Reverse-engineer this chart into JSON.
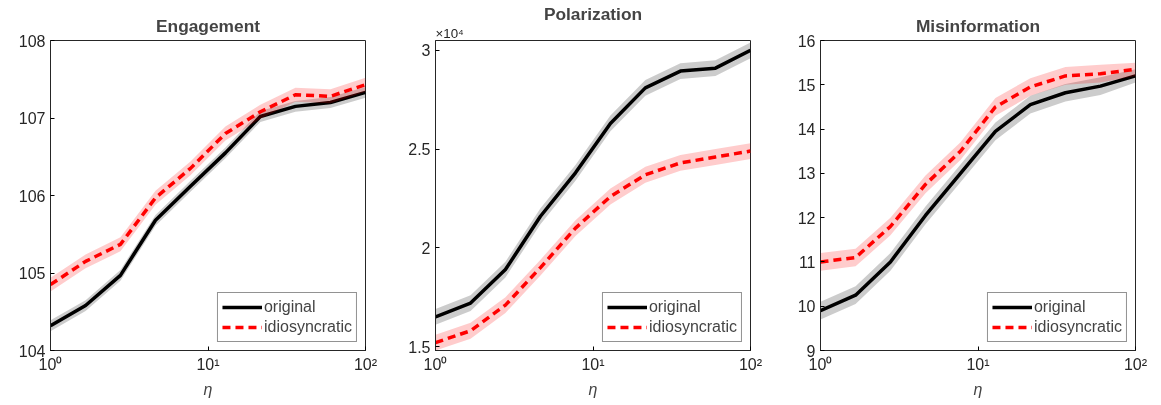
{
  "chart_data": [
    {
      "type": "line",
      "title": "Engagement",
      "xlabel": "η",
      "x": [
        1,
        1.67,
        2.78,
        4.64,
        7.74,
        12.9,
        21.5,
        35.9,
        59.9,
        100
      ],
      "xlim": [
        1,
        100
      ],
      "xticks": [
        {
          "value": 1,
          "label": "10⁰"
        },
        {
          "value": 10,
          "label": "10¹"
        },
        {
          "value": 100,
          "label": "10²"
        }
      ],
      "log": "x",
      "ylim": [
        104,
        108
      ],
      "yticks": [
        104,
        105,
        106,
        107,
        108
      ],
      "grid": false,
      "legend": "bottom right",
      "series": [
        {
          "name": "original",
          "color": "#000000",
          "line_style": "solid",
          "values": [
            104.32,
            104.58,
            104.97,
            105.68,
            106.12,
            106.55,
            107.02,
            107.15,
            107.2,
            107.33
          ],
          "lower": [
            104.25,
            104.51,
            104.9,
            105.61,
            106.05,
            106.48,
            106.95,
            107.08,
            107.13,
            107.26
          ],
          "upper": [
            104.39,
            104.65,
            105.04,
            105.75,
            106.19,
            106.62,
            107.09,
            107.22,
            107.27,
            107.4
          ]
        },
        {
          "name": "idiosyncratic",
          "color": "#ff0000",
          "line_style": "dashed",
          "values": [
            104.85,
            105.15,
            105.37,
            105.97,
            106.35,
            106.8,
            107.08,
            107.3,
            107.28,
            107.43
          ],
          "lower": [
            104.76,
            105.06,
            105.28,
            105.88,
            106.26,
            106.71,
            106.99,
            107.21,
            107.19,
            107.34
          ],
          "upper": [
            104.94,
            105.24,
            105.46,
            106.06,
            106.44,
            106.89,
            107.17,
            107.39,
            107.37,
            107.52
          ]
        }
      ]
    },
    {
      "type": "line",
      "title": "Polarization",
      "xlabel": "η",
      "annotations": [
        "×10⁴"
      ],
      "x": [
        1,
        1.67,
        2.78,
        4.64,
        7.74,
        12.9,
        21.5,
        35.9,
        59.9,
        100
      ],
      "xlim": [
        1,
        100
      ],
      "xticks": [
        {
          "value": 1,
          "label": "10⁰"
        },
        {
          "value": 10,
          "label": "10¹"
        },
        {
          "value": 100,
          "label": "10²"
        }
      ],
      "log": "x",
      "ylim": [
        1.48,
        3.05
      ],
      "yticks": [
        1.5,
        2,
        2.5,
        3
      ],
      "grid": false,
      "legend": "bottom right",
      "series": [
        {
          "name": "original",
          "color": "#000000",
          "line_style": "solid",
          "values": [
            1.65,
            1.72,
            1.89,
            2.16,
            2.38,
            2.63,
            2.81,
            2.895,
            2.91,
            3.0
          ],
          "lower": [
            1.61,
            1.68,
            1.85,
            2.12,
            2.34,
            2.59,
            2.77,
            2.855,
            2.87,
            2.96
          ],
          "upper": [
            1.69,
            1.76,
            1.93,
            2.2,
            2.42,
            2.67,
            2.85,
            2.935,
            2.95,
            3.04
          ]
        },
        {
          "name": "idiosyncratic",
          "color": "#ff0000",
          "line_style": "dashed",
          "values": [
            1.52,
            1.58,
            1.71,
            1.9,
            2.1,
            2.26,
            2.37,
            2.43,
            2.46,
            2.49
          ],
          "lower": [
            1.48,
            1.54,
            1.67,
            1.86,
            2.06,
            2.22,
            2.33,
            2.39,
            2.42,
            2.45
          ],
          "upper": [
            1.56,
            1.62,
            1.75,
            1.94,
            2.14,
            2.3,
            2.41,
            2.47,
            2.5,
            2.53
          ]
        }
      ]
    },
    {
      "type": "line",
      "title": "Misinformation",
      "xlabel": "η",
      "x": [
        1,
        1.67,
        2.78,
        4.64,
        7.74,
        12.9,
        21.5,
        35.9,
        59.9,
        100
      ],
      "xlim": [
        1,
        100
      ],
      "xticks": [
        {
          "value": 1,
          "label": "10⁰"
        },
        {
          "value": 10,
          "label": "10¹"
        },
        {
          "value": 100,
          "label": "10²"
        }
      ],
      "log": "x",
      "ylim": [
        9,
        16
      ],
      "yticks": [
        9,
        10,
        11,
        12,
        13,
        14,
        15,
        16
      ],
      "grid": false,
      "legend": "bottom right",
      "series": [
        {
          "name": "original",
          "color": "#000000",
          "line_style": "solid",
          "values": [
            9.9,
            10.25,
            11.0,
            12.05,
            13.0,
            13.95,
            14.55,
            14.82,
            14.97,
            15.2
          ],
          "lower": [
            9.7,
            10.05,
            10.8,
            11.85,
            12.8,
            13.75,
            14.35,
            14.62,
            14.77,
            15.05
          ],
          "upper": [
            10.1,
            10.45,
            11.2,
            12.25,
            13.2,
            14.15,
            14.75,
            15.02,
            15.17,
            15.35
          ]
        },
        {
          "name": "idiosyncratic",
          "color": "#ff0000",
          "line_style": "dashed",
          "values": [
            11.0,
            11.1,
            11.8,
            12.75,
            13.5,
            14.5,
            14.95,
            15.2,
            15.25,
            15.35
          ],
          "lower": [
            10.8,
            10.9,
            11.6,
            12.55,
            13.3,
            14.3,
            14.75,
            15.0,
            15.05,
            15.2
          ],
          "upper": [
            11.2,
            11.3,
            12.0,
            12.95,
            13.7,
            14.7,
            15.15,
            15.4,
            15.45,
            15.5
          ]
        }
      ]
    }
  ]
}
